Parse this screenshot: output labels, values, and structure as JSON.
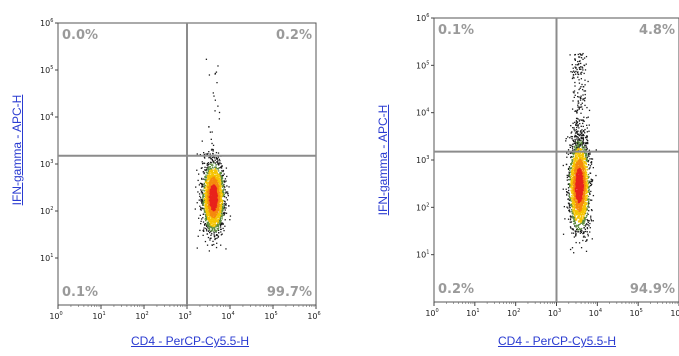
{
  "chart_data": [
    {
      "type": "scatter",
      "xlabel": "CD4 - PerCP-Cy5.5-H",
      "ylabel": "IFN-gamma - APC-H",
      "xscale": "log",
      "yscale": "log",
      "xlim": [
        1,
        1000000
      ],
      "ylim": [
        1,
        1000000
      ],
      "x_ticks": [
        "10",
        "10",
        "10",
        "10",
        "10",
        "10",
        "10"
      ],
      "x_tick_exponents": [
        "0",
        "1",
        "2",
        "3",
        "4",
        "5",
        "6"
      ],
      "y_ticks": [
        "10",
        "10",
        "10",
        "10",
        "10",
        "10"
      ],
      "y_tick_exponents": [
        "1",
        "2",
        "3",
        "4",
        "5",
        "6"
      ],
      "gate_x": 1000,
      "gate_y": 1500,
      "quadrants": {
        "upper_left": "0.0%",
        "upper_right": "0.2%",
        "lower_left": "0.1%",
        "lower_right": "99.7%"
      },
      "population_center": [
        4000,
        200
      ],
      "population_spread_log": [
        0.12,
        0.35
      ],
      "population_count": 2600,
      "positive_tail_fraction": 0.01,
      "colors": {
        "density_high": "#e8231c",
        "density_mid": "#f5c400",
        "density_low": "#1a1a1a",
        "gate": "#8c8c8c",
        "axis_label": "#2a3bd1"
      }
    },
    {
      "type": "scatter",
      "xlabel": "CD4 - PerCP-Cy5.5-H",
      "ylabel": "IFN-gamma - APC-H",
      "xscale": "log",
      "yscale": "log",
      "xlim": [
        1,
        1000000
      ],
      "ylim": [
        1,
        1000000
      ],
      "x_ticks": [
        "10",
        "10",
        "10",
        "10",
        "10",
        "10",
        "10"
      ],
      "x_tick_exponents": [
        "0",
        "1",
        "2",
        "3",
        "4",
        "5",
        "6"
      ],
      "y_ticks": [
        "10",
        "10",
        "10",
        "10",
        "10",
        "10"
      ],
      "y_tick_exponents": [
        "1",
        "2",
        "3",
        "4",
        "5",
        "6"
      ],
      "gate_x": 1000,
      "gate_y": 1500,
      "quadrants": {
        "upper_left": "0.1%",
        "upper_right": "4.8%",
        "lower_left": "0.2%",
        "lower_right": "94.9%"
      },
      "population_center": [
        3500,
        300
      ],
      "population_spread_log": [
        0.12,
        0.45
      ],
      "population_count": 2800,
      "positive_tail_fraction": 0.08,
      "colors": {
        "density_high": "#e8231c",
        "density_mid": "#f5c400",
        "density_low": "#1a1a1a",
        "gate": "#8c8c8c",
        "axis_label": "#2a3bd1"
      }
    }
  ]
}
